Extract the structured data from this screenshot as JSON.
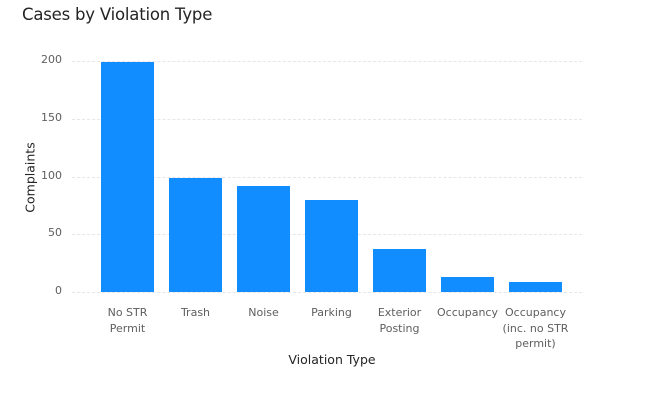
{
  "chart_data": {
    "type": "bar",
    "title": "Cases by Violation Type",
    "xlabel": "Violation Type",
    "ylabel": "Complaints",
    "ylim": [
      0,
      200
    ],
    "yticks": [
      0,
      50,
      100,
      150,
      200
    ],
    "grid": true,
    "legend": null,
    "bar_color": "#118DFF",
    "categories": [
      "No STR Permit",
      "Trash",
      "Noise",
      "Parking",
      "Exterior Posting",
      "Occupancy",
      "Occupancy (inc. no STR permit)"
    ],
    "category_lines": [
      [
        "No STR",
        "Permit"
      ],
      [
        "Trash"
      ],
      [
        "Noise"
      ],
      [
        "Parking"
      ],
      [
        "Exterior",
        "Posting"
      ],
      [
        "Occupancy"
      ],
      [
        "Occupancy",
        "(inc. no STR",
        "permit)"
      ]
    ],
    "values": [
      199,
      99,
      92,
      80,
      37,
      13,
      9
    ]
  }
}
